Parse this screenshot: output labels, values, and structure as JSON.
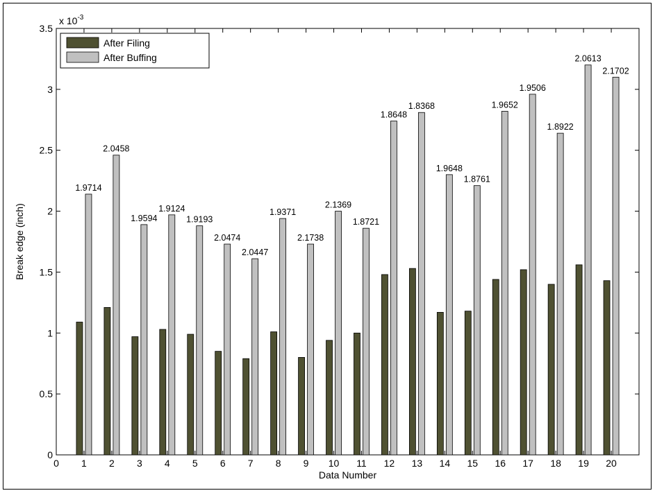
{
  "chart_data": {
    "type": "bar",
    "xlabel": "Data Number",
    "ylabel": "Break edge (inch)",
    "y_multiplier_base": "x 10",
    "y_multiplier_exponent": "-3",
    "ylim": [
      0,
      3.5
    ],
    "xlim": [
      0,
      21
    ],
    "y_ticks": [
      "0",
      "0.5",
      "1",
      "1.5",
      "2",
      "2.5",
      "3",
      "3.5"
    ],
    "x_ticks": [
      "0",
      "1",
      "2",
      "3",
      "4",
      "5",
      "6",
      "7",
      "8",
      "9",
      "10",
      "11",
      "12",
      "13",
      "14",
      "15",
      "16",
      "17",
      "18",
      "19",
      "20"
    ],
    "categories": [
      1,
      2,
      3,
      4,
      5,
      6,
      7,
      8,
      9,
      10,
      11,
      12,
      13,
      14,
      15,
      16,
      17,
      18,
      19,
      20
    ],
    "legend_position": "top-left",
    "grid": false,
    "series": [
      {
        "name": "After Filing",
        "color": "#4f5132",
        "values": [
          1.09,
          1.21,
          0.97,
          1.03,
          0.99,
          0.85,
          0.79,
          1.01,
          0.8,
          0.94,
          1.0,
          1.48,
          1.53,
          1.17,
          1.18,
          1.44,
          1.52,
          1.4,
          1.56,
          1.43
        ]
      },
      {
        "name": "After Buffing",
        "color": "#c0c0c0",
        "values": [
          2.14,
          2.46,
          1.89,
          1.97,
          1.88,
          1.73,
          1.61,
          1.94,
          1.73,
          2.0,
          1.86,
          2.74,
          2.81,
          2.3,
          2.21,
          2.82,
          2.96,
          2.64,
          3.2,
          3.1
        ]
      }
    ],
    "bar_labels": [
      "1.9714",
      "2.0458",
      "1.9594",
      "1.9124",
      "1.9193",
      "2.0474",
      "2.0447",
      "1.9371",
      "2.1738",
      "2.1369",
      "1.8721",
      "1.8648",
      "1.8368",
      "1.9648",
      "1.8761",
      "1.9652",
      "1.9506",
      "1.8922",
      "2.0613",
      "2.1702"
    ]
  }
}
